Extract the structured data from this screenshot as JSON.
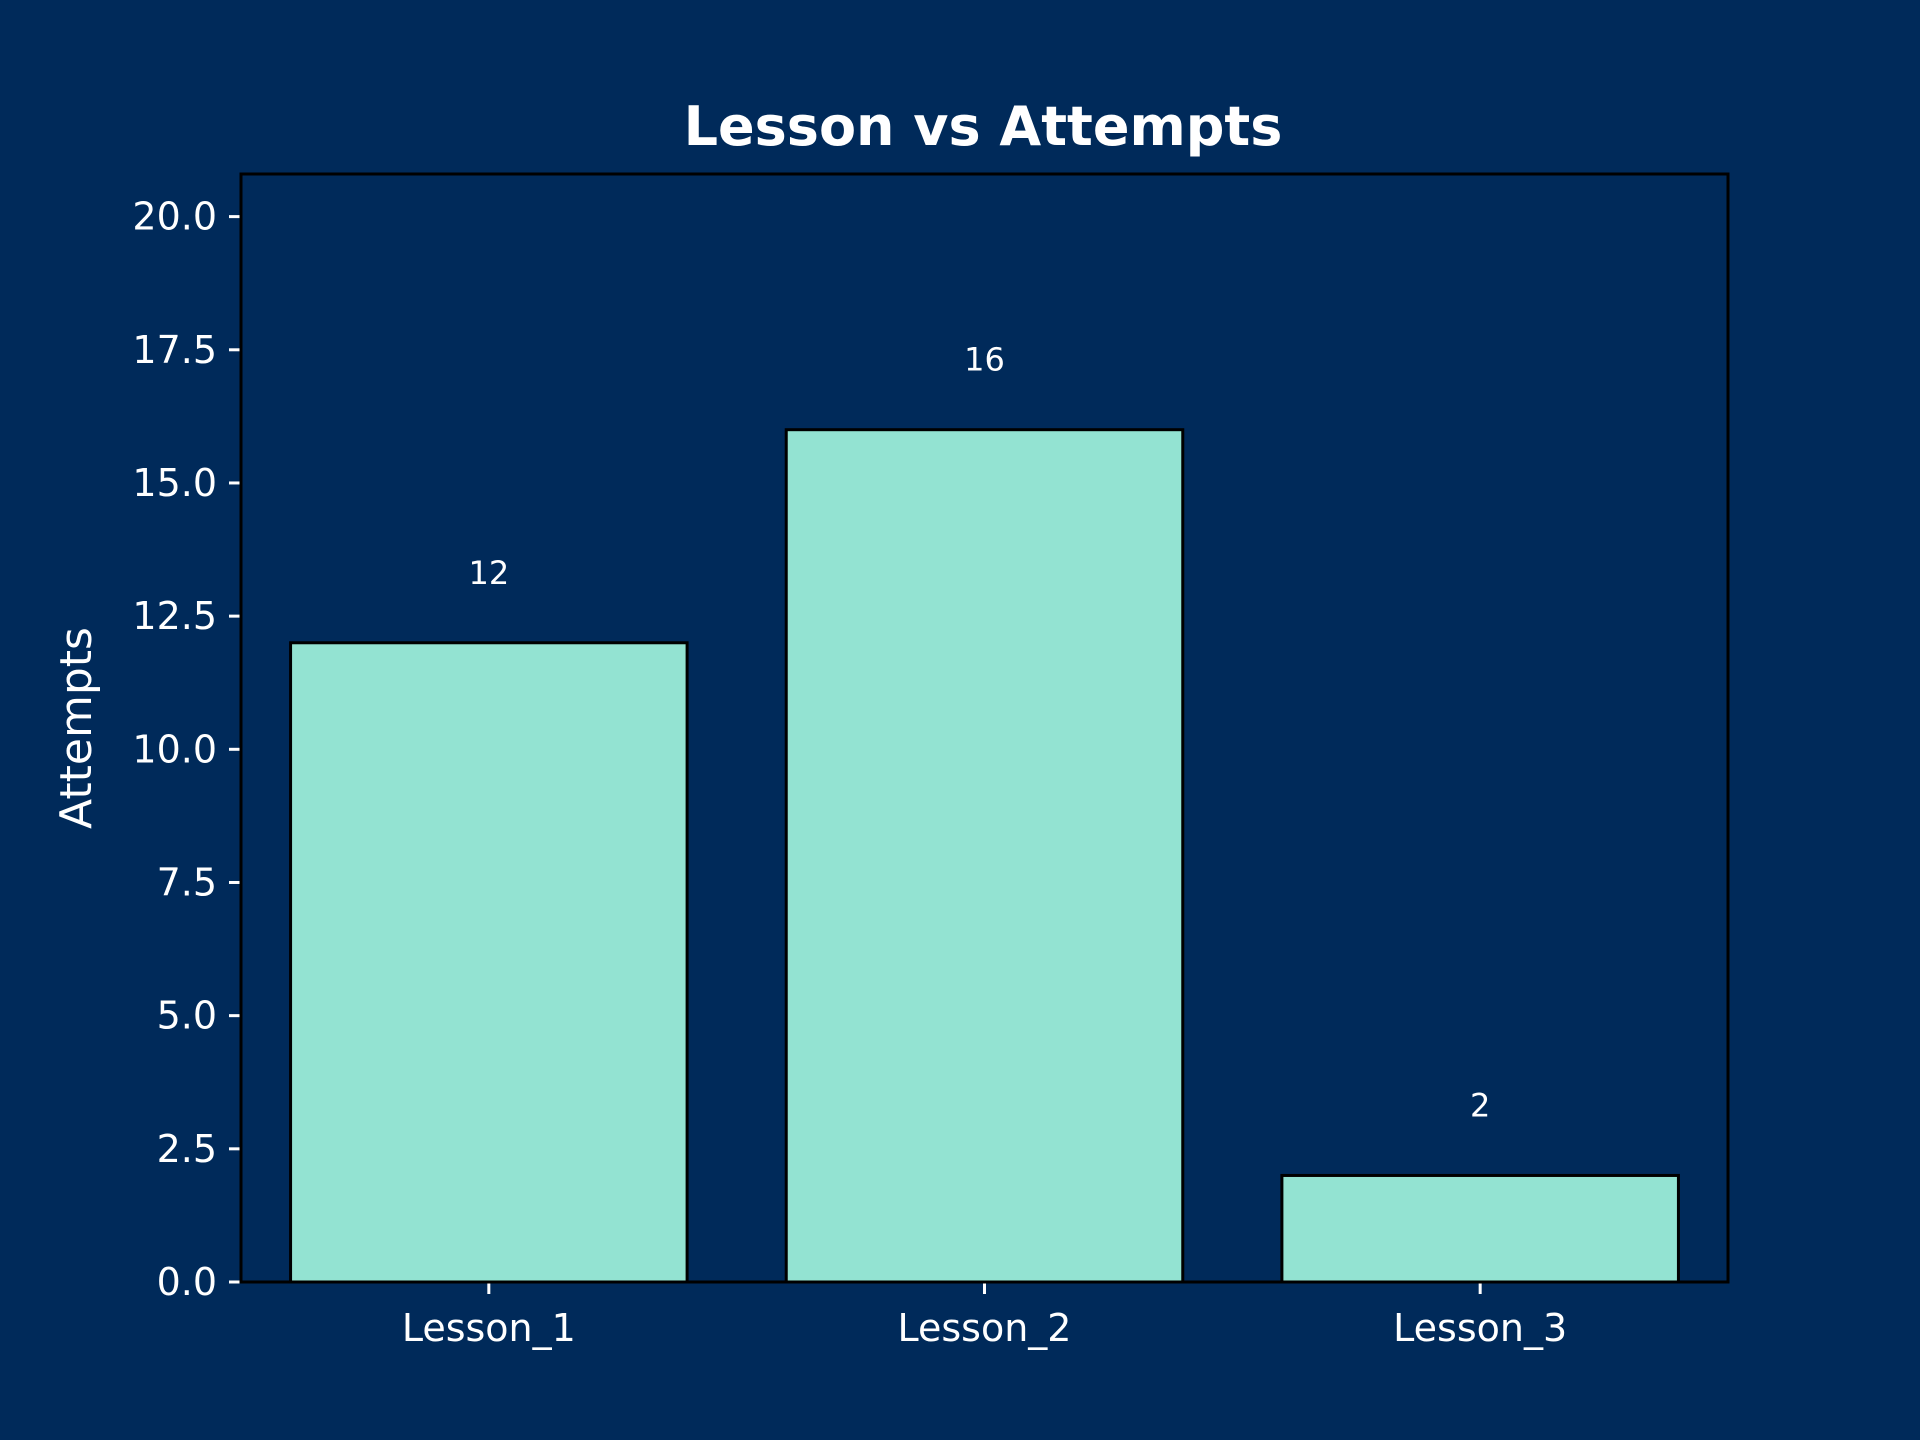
{
  "chart_data": {
    "type": "bar",
    "title": "Lesson vs Attempts",
    "xlabel": "",
    "ylabel": "Attempts",
    "categories": [
      "Lesson_1",
      "Lesson_2",
      "Lesson_3"
    ],
    "values": [
      12,
      16,
      2
    ],
    "value_labels": [
      "12",
      "16",
      "2"
    ],
    "ylim": [
      0,
      20.8
    ],
    "yticks": [
      0,
      2.5,
      5,
      7.5,
      10,
      12.5,
      15,
      17.5,
      20
    ],
    "ytick_labels": [
      "0.0",
      "2.5",
      "5.0",
      "7.5",
      "10.0",
      "12.5",
      "15.0",
      "17.5",
      "20.0"
    ],
    "grid": false,
    "legend": "none"
  },
  "colors": {
    "background": "#002a5a",
    "bar_fill": "#93e3d2",
    "bar_edge": "#000000",
    "axes_edge": "#000000",
    "text": "#ffffff"
  }
}
